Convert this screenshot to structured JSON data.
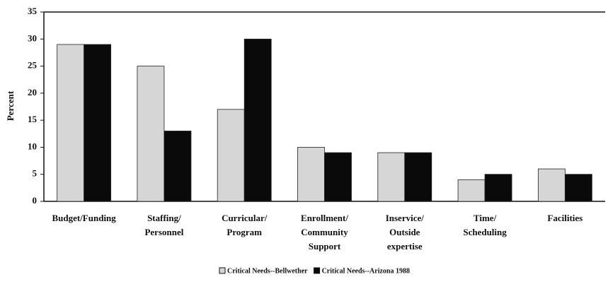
{
  "chart_data": {
    "type": "bar",
    "y_label": "Percent",
    "categories": [
      "Budget/Funding",
      "Staffing/\nPersonnel",
      "Curricular/\nProgram",
      "Enrollment/\nCommunity\nSupport",
      "Inservice/\nOutside\nexpertise",
      "Time/\nScheduling",
      "Facilities"
    ],
    "series": [
      {
        "name": "Critical Needs--Bellwether",
        "color": "#d6d6d6",
        "values": [
          29,
          25,
          17,
          10,
          9,
          4,
          6
        ]
      },
      {
        "name": "Critical Needs--Arizona 1988",
        "color": "#0a0a0a",
        "values": [
          29,
          13,
          30,
          9,
          9,
          5,
          5
        ]
      }
    ],
    "ylim": [
      0,
      35
    ],
    "yticks": [
      0,
      5,
      10,
      15,
      20,
      25,
      30,
      35
    ],
    "grid": false,
    "legend": "bottom"
  }
}
